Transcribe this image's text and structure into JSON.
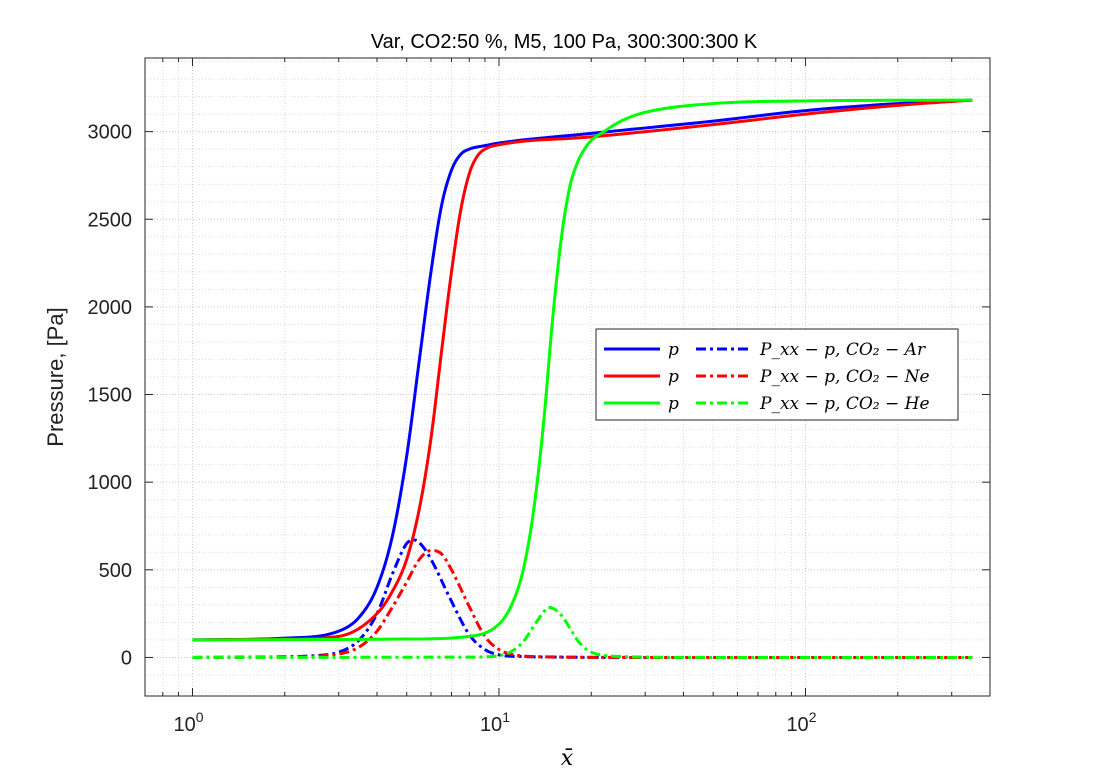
{
  "chart_data": {
    "type": "line",
    "title": "Var, CO2:50 %, M5, 100 Pa, 300:300:300 K",
    "xlabel": "x̄",
    "ylabel": "Pressure, [Pa]",
    "xscale": "log",
    "xlim": [
      0.7,
      400
    ],
    "ylim": [
      -220,
      3420
    ],
    "grid": true,
    "legend_position": "center-right",
    "x_ticks": [
      {
        "value": 1,
        "base": "10",
        "exp": "0"
      },
      {
        "value": 10,
        "base": "10",
        "exp": "1"
      },
      {
        "value": 100,
        "base": "10",
        "exp": "2"
      }
    ],
    "y_ticks": [
      {
        "value": 0,
        "label": "0"
      },
      {
        "value": 500,
        "label": "500"
      },
      {
        "value": 1000,
        "label": "1000"
      },
      {
        "value": 1500,
        "label": "1500"
      },
      {
        "value": 2000,
        "label": "2000"
      },
      {
        "value": 2500,
        "label": "2500"
      },
      {
        "value": 3000,
        "label": "3000"
      }
    ],
    "series": [
      {
        "name": "p",
        "color": "#0000ff",
        "style": "solid",
        "x": [
          1.0,
          2.0,
          3.0,
          3.5,
          4.0,
          4.5,
          5.0,
          5.5,
          6.0,
          6.5,
          7.0,
          7.5,
          8.0,
          9.0,
          10.0,
          20.0,
          50.0,
          100.0,
          200.0,
          350.0
        ],
        "y": [
          100,
          110,
          150,
          230,
          400,
          700,
          1150,
          1700,
          2200,
          2580,
          2780,
          2870,
          2900,
          2920,
          2935,
          2990,
          3060,
          3120,
          3160,
          3180
        ]
      },
      {
        "name": "P_xx − p, CO₂ − Ar",
        "color": "#0000ff",
        "style": "dashdot",
        "x": [
          1.0,
          2.0,
          2.5,
          3.0,
          3.5,
          4.0,
          4.5,
          5.0,
          5.3,
          5.6,
          6.0,
          7.0,
          8.0,
          9.0,
          10.0,
          12.0,
          15.0,
          30.0,
          100.0,
          350.0
        ],
        "y": [
          0,
          4,
          10,
          30,
          100,
          250,
          480,
          650,
          670,
          640,
          560,
          320,
          130,
          45,
          15,
          5,
          2,
          0,
          0,
          0
        ]
      },
      {
        "name": "p",
        "color": "#ff0000",
        "style": "solid",
        "x": [
          1.0,
          2.0,
          3.0,
          4.0,
          4.5,
          5.0,
          5.5,
          6.0,
          6.5,
          7.0,
          7.5,
          8.0,
          8.5,
          9.0,
          10.0,
          20.0,
          50.0,
          100.0,
          200.0,
          350.0
        ],
        "y": [
          100,
          105,
          120,
          250,
          380,
          560,
          850,
          1250,
          1750,
          2200,
          2550,
          2760,
          2860,
          2900,
          2925,
          2970,
          3040,
          3100,
          3150,
          3180
        ]
      },
      {
        "name": "P_xx − p, CO₂ − Ne",
        "color": "#ff0000",
        "style": "dashdot",
        "x": [
          1.0,
          2.0,
          3.0,
          3.5,
          4.0,
          4.5,
          5.0,
          5.5,
          6.0,
          6.5,
          7.0,
          8.0,
          9.0,
          10.0,
          11.0,
          12.0,
          15.0,
          30.0,
          100.0,
          350.0
        ],
        "y": [
          0,
          3,
          20,
          60,
          150,
          290,
          430,
          560,
          610,
          590,
          500,
          290,
          120,
          45,
          18,
          8,
          3,
          0,
          0,
          0
        ]
      },
      {
        "name": "p",
        "color": "#00ff00",
        "style": "solid",
        "x": [
          1.0,
          5.0,
          8.0,
          10.0,
          11.0,
          12.0,
          13.0,
          14.0,
          15.0,
          16.0,
          17.0,
          18.0,
          19.0,
          20.0,
          22.0,
          25.0,
          30.0,
          50.0,
          100.0,
          350.0
        ],
        "y": [
          100,
          105,
          120,
          190,
          300,
          500,
          850,
          1350,
          1950,
          2400,
          2680,
          2820,
          2900,
          2950,
          3000,
          3060,
          3110,
          3160,
          3175,
          3180
        ]
      },
      {
        "name": "P_xx − p, CO₂ − He",
        "color": "#00ff00",
        "style": "dashdot",
        "x": [
          1.0,
          8.0,
          10.0,
          11.0,
          12.0,
          13.0,
          14.0,
          14.5,
          15.0,
          16.0,
          17.0,
          18.0,
          19.0,
          20.0,
          22.0,
          25.0,
          30.0,
          50.0,
          100.0,
          350.0
        ],
        "y": [
          0,
          2,
          10,
          35,
          90,
          180,
          260,
          285,
          280,
          240,
          170,
          100,
          55,
          30,
          12,
          5,
          2,
          0,
          0,
          0
        ]
      }
    ],
    "legend": {
      "rows": [
        {
          "solid_label": "p",
          "dash_label": "P_xx − p, CO₂ − Ar",
          "color": "#0000ff"
        },
        {
          "solid_label": "p",
          "dash_label": "P_xx − p, CO₂ − Ne",
          "color": "#ff0000"
        },
        {
          "solid_label": "p",
          "dash_label": "P_xx − p, CO₂ − He",
          "color": "#00ff00"
        }
      ]
    }
  }
}
